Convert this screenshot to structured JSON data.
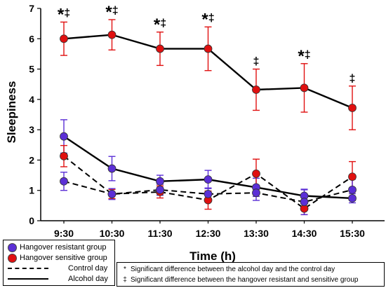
{
  "chart_data": {
    "type": "line",
    "xlabel": "Time (h)",
    "ylabel": "Sleepiness",
    "ylim": [
      0,
      7
    ],
    "yticks": [
      0,
      1,
      2,
      3,
      4,
      5,
      6,
      7
    ],
    "categories": [
      "9:30",
      "10:30",
      "11:30",
      "12:30",
      "13:30",
      "14:30",
      "15:30"
    ],
    "colors": {
      "resistant": "#5b2fd6",
      "sensitive": "#e01010",
      "line": "#000000"
    },
    "series": [
      {
        "name": "Hangover sensitive group - Alcohol day",
        "group": "sensitive",
        "day": "alcohol",
        "values": [
          6.0,
          6.13,
          5.67,
          5.67,
          4.32,
          4.38,
          3.72
        ],
        "errors": [
          0.55,
          0.5,
          0.55,
          0.72,
          0.68,
          0.8,
          0.72
        ]
      },
      {
        "name": "Hangover resistant group - Alcohol day",
        "group": "resistant",
        "day": "alcohol",
        "values": [
          2.78,
          1.72,
          1.3,
          1.36,
          1.1,
          0.82,
          0.74
        ],
        "errors": [
          0.55,
          0.4,
          0.2,
          0.3,
          0.3,
          0.2,
          0.15
        ]
      },
      {
        "name": "Hangover sensitive group - Control day",
        "group": "sensitive",
        "day": "control",
        "values": [
          2.13,
          0.88,
          0.95,
          0.68,
          1.55,
          0.4,
          1.45
        ],
        "errors": [
          0.35,
          0.15,
          0.2,
          0.3,
          0.48,
          0.2,
          0.5
        ]
      },
      {
        "name": "Hangover resistant group - Control day",
        "group": "resistant",
        "day": "control",
        "values": [
          1.3,
          0.88,
          1.02,
          0.88,
          0.92,
          0.62,
          1.02
        ],
        "errors": [
          0.3,
          0.18,
          0.18,
          0.2,
          0.25,
          0.42,
          0.35
        ]
      }
    ],
    "annotations": [
      {
        "category": "9:30",
        "text": "*‡"
      },
      {
        "category": "10:30",
        "text": "*‡"
      },
      {
        "category": "11:30",
        "text": "*‡"
      },
      {
        "category": "12:30",
        "text": "*‡"
      },
      {
        "category": "13:30",
        "text": "‡"
      },
      {
        "category": "14:30",
        "text": "*‡"
      },
      {
        "category": "15:30",
        "text": "‡"
      }
    ],
    "legend": {
      "resistant_label": "Hangover resistant group",
      "sensitive_label": "Hangover sensitive group",
      "control_label": "Control day",
      "alcohol_label": "Alcohol day"
    },
    "notes": {
      "star_symbol": "*",
      "star_text": "Significant difference between the alcohol day and the control day",
      "dagger_symbol": "‡",
      "dagger_text": "Significant difference between the hangover resistant and sensitive group"
    }
  }
}
